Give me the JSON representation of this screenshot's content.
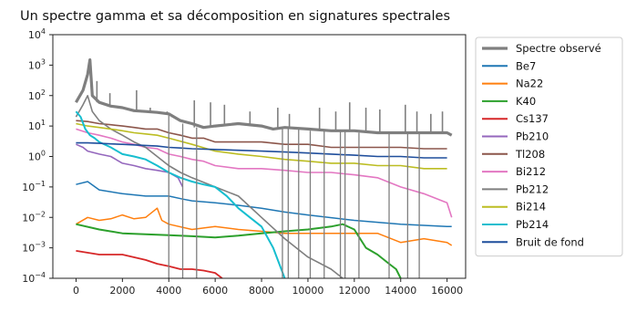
{
  "chart_data": {
    "type": "line",
    "title": "Un spectre gamma et sa décomposition en signatures spectrales",
    "xlabel": "",
    "ylabel": "",
    "xlim": [
      -1000,
      16800
    ],
    "ylim": [
      0.0001,
      10000
    ],
    "yscale": "log",
    "grid": false,
    "legend_position": "outside-right",
    "x_ticks": [
      {
        "value": 0,
        "label": "0"
      },
      {
        "value": 2000,
        "label": "2000"
      },
      {
        "value": 4000,
        "label": "4000"
      },
      {
        "value": 6000,
        "label": "6000"
      },
      {
        "value": 8000,
        "label": "8000"
      },
      {
        "value": 10000,
        "label": "10000"
      },
      {
        "value": 12000,
        "label": "12000"
      },
      {
        "value": 14000,
        "label": "14000"
      },
      {
        "value": 16000,
        "label": "16000"
      }
    ],
    "y_ticks": [
      {
        "value": 10000,
        "base": "10",
        "exp": "4"
      },
      {
        "value": 1000,
        "base": "10",
        "exp": "3"
      },
      {
        "value": 100,
        "base": "10",
        "exp": "2"
      },
      {
        "value": 10,
        "base": "10",
        "exp": "1"
      },
      {
        "value": 1,
        "base": "10",
        "exp": "0"
      },
      {
        "value": 0.1,
        "base": "10",
        "exp": "−1"
      },
      {
        "value": 0.01,
        "base": "10",
        "exp": "−2"
      },
      {
        "value": 0.001,
        "base": "10",
        "exp": "−3"
      },
      {
        "value": 0.0001,
        "base": "10",
        "exp": "−4"
      }
    ],
    "series": [
      {
        "name": "Spectre observé",
        "color": "#7f7f7f",
        "width": 3.2,
        "points": [
          [
            0,
            60
          ],
          [
            300,
            150
          ],
          [
            500,
            500
          ],
          [
            600,
            1500
          ],
          [
            700,
            100
          ],
          [
            1000,
            60
          ],
          [
            1500,
            45
          ],
          [
            2000,
            40
          ],
          [
            2500,
            32
          ],
          [
            3000,
            30
          ],
          [
            3500,
            28
          ],
          [
            4000,
            25
          ],
          [
            4500,
            15
          ],
          [
            5000,
            12
          ],
          [
            5500,
            9
          ],
          [
            6000,
            10
          ],
          [
            7000,
            12
          ],
          [
            8000,
            10
          ],
          [
            8500,
            8
          ],
          [
            9000,
            9
          ],
          [
            10000,
            8
          ],
          [
            11000,
            7
          ],
          [
            12000,
            7
          ],
          [
            13000,
            6
          ],
          [
            14000,
            6
          ],
          [
            15000,
            6
          ],
          [
            16000,
            6
          ],
          [
            16200,
            5
          ]
        ]
      },
      {
        "name": "Be7",
        "color": "#1f77b4",
        "width": 1.5,
        "points": [
          [
            0,
            0.12
          ],
          [
            500,
            0.15
          ],
          [
            1000,
            0.08
          ],
          [
            2000,
            0.06
          ],
          [
            3000,
            0.05
          ],
          [
            4000,
            0.05
          ],
          [
            4600,
            0.04
          ],
          [
            5000,
            0.035
          ],
          [
            6000,
            0.03
          ],
          [
            7000,
            0.025
          ],
          [
            8000,
            0.02
          ],
          [
            9000,
            0.015
          ],
          [
            10000,
            0.012
          ],
          [
            12000,
            0.008
          ],
          [
            14000,
            0.006
          ],
          [
            16000,
            0.005
          ],
          [
            16200,
            0.005
          ]
        ]
      },
      {
        "name": "Na22",
        "color": "#ff7f0e",
        "width": 1.5,
        "points": [
          [
            0,
            0.006
          ],
          [
            500,
            0.01
          ],
          [
            1000,
            0.008
          ],
          [
            1500,
            0.009
          ],
          [
            2000,
            0.012
          ],
          [
            2500,
            0.009
          ],
          [
            3000,
            0.01
          ],
          [
            3500,
            0.02
          ],
          [
            3700,
            0.008
          ],
          [
            4000,
            0.006
          ],
          [
            5000,
            0.004
          ],
          [
            6000,
            0.005
          ],
          [
            7000,
            0.004
          ],
          [
            8000,
            0.0035
          ],
          [
            9000,
            0.003
          ],
          [
            10000,
            0.003
          ],
          [
            11000,
            0.003
          ],
          [
            12000,
            0.003
          ],
          [
            13000,
            0.003
          ],
          [
            14000,
            0.0015
          ],
          [
            15000,
            0.002
          ],
          [
            16000,
            0.0015
          ],
          [
            16200,
            0.0012
          ]
        ]
      },
      {
        "name": "K40",
        "color": "#2ca02c",
        "width": 2.0,
        "points": [
          [
            0,
            0.006
          ],
          [
            1000,
            0.004
          ],
          [
            2000,
            0.003
          ],
          [
            3000,
            0.0028
          ],
          [
            4000,
            0.0026
          ],
          [
            5000,
            0.0024
          ],
          [
            6000,
            0.0022
          ],
          [
            7000,
            0.0025
          ],
          [
            8000,
            0.003
          ],
          [
            9000,
            0.0035
          ],
          [
            10000,
            0.004
          ],
          [
            11000,
            0.005
          ],
          [
            11500,
            0.006
          ],
          [
            12000,
            0.004
          ],
          [
            12500,
            0.001
          ],
          [
            13000,
            0.0006
          ],
          [
            13500,
            0.0003
          ],
          [
            13800,
            0.0002
          ],
          [
            14000,
            0.0001
          ]
        ]
      },
      {
        "name": "Cs137",
        "color": "#d62728",
        "width": 1.8,
        "points": [
          [
            0,
            0.0008
          ],
          [
            1000,
            0.0006
          ],
          [
            2000,
            0.0006
          ],
          [
            3000,
            0.0004
          ],
          [
            3500,
            0.0003
          ],
          [
            4000,
            0.00025
          ],
          [
            4500,
            0.0002
          ],
          [
            5000,
            0.0002
          ],
          [
            5500,
            0.00018
          ],
          [
            6000,
            0.00015
          ],
          [
            6300,
            0.0001
          ]
        ]
      },
      {
        "name": "Pb210",
        "color": "#9467bd",
        "width": 1.6,
        "points": [
          [
            0,
            2.5
          ],
          [
            300,
            2.0
          ],
          [
            500,
            1.5
          ],
          [
            1000,
            1.2
          ],
          [
            1500,
            1.0
          ],
          [
            2000,
            0.6
          ],
          [
            2500,
            0.5
          ],
          [
            3000,
            0.4
          ],
          [
            3500,
            0.35
          ],
          [
            4000,
            0.3
          ],
          [
            4400,
            0.2
          ],
          [
            4600,
            0.1
          ]
        ]
      },
      {
        "name": "Tl208",
        "color": "#8c564b",
        "width": 1.6,
        "points": [
          [
            0,
            15
          ],
          [
            500,
            14
          ],
          [
            1000,
            12
          ],
          [
            1500,
            11
          ],
          [
            2000,
            10
          ],
          [
            2500,
            9
          ],
          [
            3000,
            8
          ],
          [
            3500,
            8
          ],
          [
            4000,
            6
          ],
          [
            4500,
            5
          ],
          [
            5000,
            4
          ],
          [
            5500,
            4
          ],
          [
            6000,
            3
          ],
          [
            7000,
            3
          ],
          [
            8000,
            3
          ],
          [
            9000,
            2.5
          ],
          [
            10000,
            2.5
          ],
          [
            11000,
            2
          ],
          [
            12000,
            2
          ],
          [
            13000,
            2
          ],
          [
            14000,
            2
          ],
          [
            15000,
            1.8
          ],
          [
            16000,
            1.8
          ]
        ]
      },
      {
        "name": "Bi212",
        "color": "#e377c2",
        "width": 1.6,
        "points": [
          [
            0,
            8
          ],
          [
            500,
            6
          ],
          [
            1000,
            5
          ],
          [
            1500,
            4
          ],
          [
            2000,
            3
          ],
          [
            2500,
            2.5
          ],
          [
            3000,
            2
          ],
          [
            3500,
            1.8
          ],
          [
            4000,
            1.2
          ],
          [
            4500,
            1.0
          ],
          [
            5000,
            0.8
          ],
          [
            5500,
            0.7
          ],
          [
            6000,
            0.5
          ],
          [
            7000,
            0.4
          ],
          [
            8000,
            0.4
          ],
          [
            9000,
            0.35
          ],
          [
            10000,
            0.3
          ],
          [
            11000,
            0.3
          ],
          [
            12000,
            0.25
          ],
          [
            13000,
            0.2
          ],
          [
            14000,
            0.1
          ],
          [
            15000,
            0.06
          ],
          [
            16000,
            0.03
          ],
          [
            16200,
            0.01
          ]
        ]
      },
      {
        "name": "Pb212",
        "color": "#7f7f7f",
        "width": 1.6,
        "points": [
          [
            0,
            20
          ],
          [
            300,
            50
          ],
          [
            500,
            100
          ],
          [
            700,
            30
          ],
          [
            1000,
            15
          ],
          [
            1500,
            8
          ],
          [
            2000,
            5
          ],
          [
            2500,
            3
          ],
          [
            3000,
            2
          ],
          [
            3500,
            1
          ],
          [
            4000,
            0.5
          ],
          [
            4500,
            0.3
          ],
          [
            5000,
            0.2
          ],
          [
            6000,
            0.1
          ],
          [
            7000,
            0.05
          ],
          [
            8000,
            0.01
          ],
          [
            9000,
            0.002
          ],
          [
            10000,
            0.0005
          ],
          [
            11000,
            0.0002
          ],
          [
            11500,
            0.0001
          ]
        ]
      },
      {
        "name": "Bi214",
        "color": "#bcbd22",
        "width": 1.6,
        "points": [
          [
            0,
            12
          ],
          [
            500,
            10
          ],
          [
            1000,
            9
          ],
          [
            1500,
            8
          ],
          [
            2000,
            7
          ],
          [
            2500,
            6
          ],
          [
            3000,
            5.5
          ],
          [
            3500,
            5
          ],
          [
            4000,
            4
          ],
          [
            5000,
            2.5
          ],
          [
            6000,
            1.5
          ],
          [
            7000,
            1.2
          ],
          [
            8000,
            1.0
          ],
          [
            9000,
            0.8
          ],
          [
            10000,
            0.7
          ],
          [
            11000,
            0.6
          ],
          [
            12000,
            0.6
          ],
          [
            13000,
            0.5
          ],
          [
            14000,
            0.5
          ],
          [
            15000,
            0.4
          ],
          [
            16000,
            0.4
          ]
        ]
      },
      {
        "name": "Pb214",
        "color": "#17becf",
        "width": 2.0,
        "points": [
          [
            0,
            30
          ],
          [
            200,
            20
          ],
          [
            400,
            8
          ],
          [
            600,
            5
          ],
          [
            800,
            4
          ],
          [
            1000,
            3
          ],
          [
            1500,
            2
          ],
          [
            2000,
            1.2
          ],
          [
            2500,
            1.0
          ],
          [
            3000,
            0.8
          ],
          [
            3500,
            0.5
          ],
          [
            4000,
            0.3
          ],
          [
            4500,
            0.2
          ],
          [
            5000,
            0.15
          ],
          [
            5500,
            0.12
          ],
          [
            6000,
            0.1
          ],
          [
            6500,
            0.05
          ],
          [
            7000,
            0.02
          ],
          [
            7500,
            0.01
          ],
          [
            8000,
            0.005
          ],
          [
            8500,
            0.001
          ],
          [
            9000,
            0.0001
          ]
        ]
      },
      {
        "name": "Bruit de fond",
        "color": "#1f4e9c",
        "width": 1.6,
        "points": [
          [
            0,
            2.8
          ],
          [
            500,
            2.8
          ],
          [
            1000,
            2.7
          ],
          [
            1500,
            2.6
          ],
          [
            2000,
            2.5
          ],
          [
            2500,
            2.4
          ],
          [
            3000,
            2.3
          ],
          [
            3500,
            2.2
          ],
          [
            4000,
            2.0
          ],
          [
            4500,
            1.9
          ],
          [
            5000,
            1.8
          ],
          [
            6000,
            1.7
          ],
          [
            7000,
            1.6
          ],
          [
            8000,
            1.5
          ],
          [
            9000,
            1.4
          ],
          [
            10000,
            1.3
          ],
          [
            11000,
            1.2
          ],
          [
            12000,
            1.1
          ],
          [
            13000,
            1.0
          ],
          [
            14000,
            1.0
          ],
          [
            15000,
            0.9
          ],
          [
            16000,
            0.9
          ]
        ]
      }
    ],
    "observed_spikes": [
      [
        580,
        1000
      ],
      [
        900,
        300
      ],
      [
        1460,
        120
      ],
      [
        2610,
        150
      ],
      [
        3200,
        40
      ],
      [
        3930,
        30
      ],
      [
        5100,
        70
      ],
      [
        5800,
        60
      ],
      [
        6400,
        50
      ],
      [
        7500,
        30
      ],
      [
        8700,
        40
      ],
      [
        9200,
        25
      ],
      [
        10500,
        40
      ],
      [
        11200,
        30
      ],
      [
        11800,
        60
      ],
      [
        12500,
        40
      ],
      [
        13100,
        35
      ],
      [
        14200,
        50
      ],
      [
        14700,
        30
      ],
      [
        15300,
        25
      ],
      [
        15800,
        30
      ]
    ],
    "observed_dropouts": [
      4000,
      4600,
      5200,
      8900,
      9150,
      9600,
      10100,
      10700,
      11400,
      11600,
      12200,
      13500,
      14300,
      14800
    ]
  }
}
